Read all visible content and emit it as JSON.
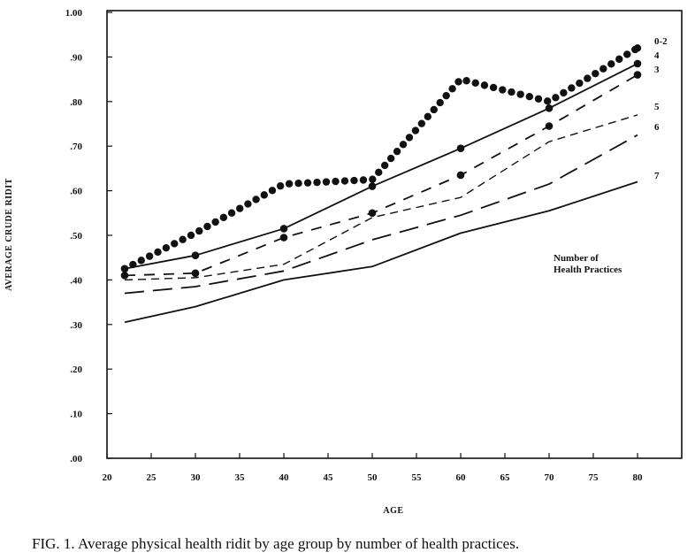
{
  "caption": {
    "prefix": "FIG. 1.",
    "text": "Average physical health ridit by age group by number of health practices."
  },
  "chart_data": {
    "type": "line",
    "xlabel": "AGE",
    "ylabel": "AVERAGE CRUDE RIDIT",
    "xlim": [
      20,
      85
    ],
    "ylim": [
      0,
      1.0
    ],
    "x_ticks": [
      "20",
      "25",
      "30",
      "35",
      "40",
      "45",
      "50",
      "55",
      "60",
      "65",
      "70",
      "75",
      "80"
    ],
    "y_ticks": [
      ".00",
      ".10",
      ".20",
      ".30",
      ".40",
      ".50",
      ".60",
      ".70",
      ".80",
      ".90",
      "1.00"
    ],
    "grid": false,
    "legend_note": [
      "Number of",
      "Health Practices"
    ],
    "series": [
      {
        "name": "0-2",
        "style": "dotted",
        "x": [
          22,
          30,
          40,
          50,
          60,
          70,
          80
        ],
        "y": [
          0.425,
          0.505,
          0.615,
          0.625,
          0.85,
          0.8,
          0.92
        ]
      },
      {
        "name": "4",
        "style": "solid-dots",
        "x": [
          22,
          30,
          40,
          50,
          60,
          70,
          80
        ],
        "y": [
          0.425,
          0.455,
          0.515,
          0.61,
          0.695,
          0.785,
          0.885
        ]
      },
      {
        "name": "3",
        "style": "dashdot",
        "x": [
          22,
          30,
          40,
          50,
          60,
          70,
          80
        ],
        "y": [
          0.41,
          0.415,
          0.495,
          0.55,
          0.635,
          0.745,
          0.86
        ]
      },
      {
        "name": "5",
        "style": "dashed-short",
        "x": [
          22,
          30,
          40,
          50,
          60,
          70,
          80
        ],
        "y": [
          0.4,
          0.405,
          0.435,
          0.54,
          0.585,
          0.71,
          0.77
        ]
      },
      {
        "name": "6",
        "style": "dashed-long",
        "x": [
          22,
          30,
          40,
          50,
          60,
          70,
          80
        ],
        "y": [
          0.37,
          0.385,
          0.42,
          0.49,
          0.545,
          0.615,
          0.725
        ]
      },
      {
        "name": "7",
        "style": "solid",
        "x": [
          22,
          30,
          40,
          50,
          60,
          70,
          80
        ],
        "y": [
          0.305,
          0.34,
          0.4,
          0.43,
          0.505,
          0.555,
          0.62
        ]
      }
    ]
  }
}
